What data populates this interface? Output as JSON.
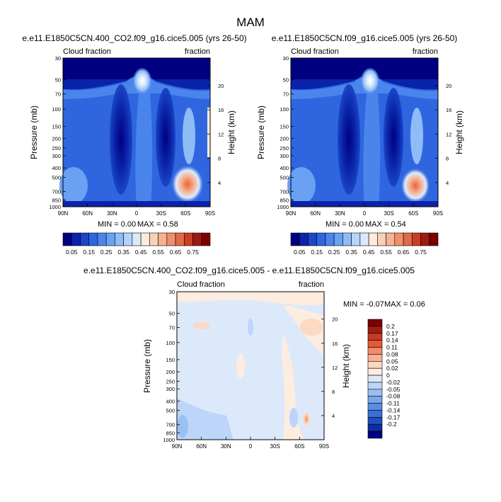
{
  "figure": {
    "title": "MAM"
  },
  "colors": {
    "cbar_abs": [
      "#000080",
      "#0a23a8",
      "#1a46c8",
      "#2f66e0",
      "#4a85ec",
      "#6aa1f2",
      "#8fbcf7",
      "#b6d4fa",
      "#dbe9fc",
      "#ffeadb",
      "#fbd0b8",
      "#f6b294",
      "#ee906c",
      "#e06a46",
      "#c84024",
      "#a01a10",
      "#7a0000"
    ],
    "cbar_diff": [
      "#7a0000",
      "#a21b12",
      "#c83a24",
      "#e65a36",
      "#f48a66",
      "#f9b292",
      "#fdd8c2",
      "#fdece0",
      "#dce9fb",
      "#bcd5f8",
      "#9bbff3",
      "#7aa6ec",
      "#5a8ce4",
      "#3b6fd8",
      "#1e4ec2",
      "#0c2ea4",
      "#000080"
    ]
  },
  "chart_data": [
    {
      "type": "heatmap",
      "title": "e.e11.E1850C5CN.400_CO2.f09_g16.cice5.005 (yrs 26-50)",
      "left_label": "Cloud fraction",
      "right_label": "fraction",
      "xlabel": "",
      "ylabel": "Pressure (mb)",
      "y2label": "Height (km)",
      "x_ticks": [
        "90N",
        "60N",
        "30N",
        "0",
        "30S",
        "60S",
        "90S"
      ],
      "y_ticks": [
        "30",
        "50",
        "70",
        "100",
        "150",
        "200",
        "250",
        "300",
        "400",
        "500",
        "700",
        "850",
        "1000"
      ],
      "y_ticks_pressure": [
        30,
        50,
        70,
        100,
        150,
        200,
        250,
        300,
        400,
        500,
        700,
        850,
        1000
      ],
      "y2_ticks": [
        "20",
        "16",
        "12",
        "8",
        "4"
      ],
      "y2_ticks_km": [
        20,
        16,
        12,
        8,
        4
      ],
      "ylim": [
        1000,
        30
      ],
      "min_text": "MIN =   0.00",
      "max_text": "MAX =   0.58",
      "colorbar_labels": [
        "0.05",
        "0.15",
        "0.25",
        "0.35",
        "0.45",
        "0.55",
        "0.65",
        "0.75"
      ],
      "contour_levels": [
        0.05,
        0.1,
        0.15,
        0.2,
        0.25,
        0.3,
        0.35,
        0.4,
        0.45,
        0.5,
        0.55,
        0.6,
        0.65,
        0.7,
        0.75
      ]
    },
    {
      "type": "heatmap",
      "title": "e.e11.E1850C5CN.f09_g16.cice5.005 (yrs 26-50)",
      "left_label": "Cloud fraction",
      "right_label": "fraction",
      "xlabel": "",
      "ylabel": "Pressure (mb)",
      "y2label": "Height (km)",
      "x_ticks": [
        "90N",
        "60N",
        "30N",
        "0",
        "30S",
        "60S",
        "90S"
      ],
      "y_ticks": [
        "30",
        "50",
        "70",
        "100",
        "150",
        "200",
        "250",
        "300",
        "400",
        "500",
        "700",
        "850",
        "1000"
      ],
      "y_ticks_pressure": [
        30,
        50,
        70,
        100,
        150,
        200,
        250,
        300,
        400,
        500,
        700,
        850,
        1000
      ],
      "y2_ticks": [
        "20",
        "16",
        "12",
        "8",
        "4"
      ],
      "y2_ticks_km": [
        20,
        16,
        12,
        8,
        4
      ],
      "ylim": [
        1000,
        30
      ],
      "min_text": "MIN =   0.00",
      "max_text": "MAX =   0.54",
      "colorbar_labels": [
        "0.05",
        "0.15",
        "0.25",
        "0.35",
        "0.45",
        "0.55",
        "0.65",
        "0.75"
      ],
      "contour_levels": [
        0.05,
        0.1,
        0.15,
        0.2,
        0.25,
        0.3,
        0.35,
        0.4,
        0.45,
        0.5,
        0.55,
        0.6,
        0.65,
        0.7,
        0.75
      ]
    },
    {
      "type": "heatmap",
      "title": "e.e11.E1850C5CN.400_CO2.f09_g16.cice5.005 - e.e11.E1850C5CN.f09_g16.cice5.005",
      "left_label": "Cloud fraction",
      "right_label": "fraction",
      "xlabel": "",
      "ylabel": "Pressure (mb)",
      "y2label": "Height (km)",
      "x_ticks": [
        "90N",
        "60N",
        "30N",
        "0",
        "30S",
        "60S",
        "90S"
      ],
      "y_ticks": [
        "30",
        "50",
        "70",
        "100",
        "150",
        "200",
        "250",
        "300",
        "400",
        "500",
        "700",
        "850",
        "1000"
      ],
      "y_ticks_pressure": [
        30,
        50,
        70,
        100,
        150,
        200,
        250,
        300,
        400,
        500,
        700,
        850,
        1000
      ],
      "y2_ticks": [
        "20",
        "16",
        "12",
        "8",
        "4"
      ],
      "y2_ticks_km": [
        20,
        16,
        12,
        8,
        4
      ],
      "ylim": [
        1000,
        30
      ],
      "min_text": "MIN =  -0.07",
      "max_text": "MAX =   0.06",
      "colorbar_labels": [
        "0.2",
        "0.17",
        "0.14",
        "0.11",
        "0.08",
        "0.05",
        "0.02",
        "0",
        "-0.02",
        "-0.05",
        "-0.08",
        "-0.11",
        "-0.14",
        "-0.17",
        "-0.2"
      ],
      "contour_levels": [
        -0.2,
        -0.17,
        -0.14,
        -0.11,
        -0.08,
        -0.05,
        -0.02,
        0,
        0.02,
        0.05,
        0.08,
        0.11,
        0.14,
        0.17,
        0.2
      ]
    }
  ]
}
